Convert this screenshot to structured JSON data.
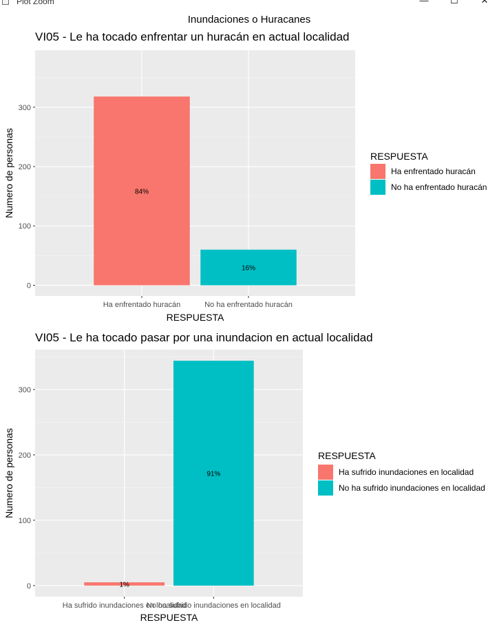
{
  "window": {
    "title": "Plot Zoom",
    "controls": {
      "minimize": "—",
      "maximize": "☐",
      "close": "✕"
    }
  },
  "figure": {
    "title": "Inundaciones o Huracanes"
  },
  "chart_data": [
    {
      "type": "bar",
      "title": "VI05 - Le ha tocado enfrentar un huracán en actual localidad",
      "xlabel": "RESPUESTA",
      "ylabel": "Numero de personas",
      "categories": [
        "Ha enfrentado huracán",
        "No ha enfrentado huracán"
      ],
      "values": [
        318,
        60
      ],
      "labels": [
        "84%",
        "16%"
      ],
      "colors": [
        "#F8766D",
        "#00BFC4"
      ],
      "yticks": [
        0,
        100,
        200,
        300
      ],
      "ylim": [
        -18,
        396
      ],
      "legend": {
        "title": "RESPUESTA",
        "position": "right",
        "items": [
          "Ha enfrentado huracán",
          "No ha enfrentado huracán"
        ]
      },
      "grid": true
    },
    {
      "type": "bar",
      "title": "VI05 - Le ha tocado pasar por una inundacion en actual localidad",
      "xlabel": "RESPUESTA",
      "ylabel": "Numero de personas",
      "categories": [
        "Ha sufrido inundaciones en localidad",
        "No ha sufrido inundaciones en localidad"
      ],
      "values": [
        5,
        344
      ],
      "labels": [
        "1%",
        "91%"
      ],
      "colors": [
        "#F8766D",
        "#00BFC4"
      ],
      "yticks": [
        0,
        100,
        200,
        300
      ],
      "ylim": [
        -17,
        361
      ],
      "legend": {
        "title": "RESPUESTA",
        "position": "right",
        "items": [
          "Ha sufrido inundaciones en localidad",
          "No ha sufrido inundaciones en localidad"
        ]
      },
      "grid": true
    }
  ]
}
